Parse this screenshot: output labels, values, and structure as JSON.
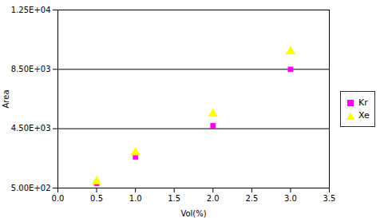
{
  "chart_data": {
    "type": "scatter",
    "xlabel": "Vol(%)",
    "ylabel": "Area",
    "x": [
      0.5,
      1.0,
      2.0,
      3.0
    ],
    "series": [
      {
        "name": "Kr",
        "color": "#FF00FF",
        "marker": "square",
        "values": [
          820,
          2600,
          4700,
          8500
        ]
      },
      {
        "name": "Xe",
        "color": "#FFFF00",
        "marker": "triangle",
        "values": [
          950,
          2900,
          5500,
          9700
        ]
      }
    ],
    "hlines": [
      4500,
      8500
    ],
    "xlim": [
      0.0,
      3.5
    ],
    "xticks": [
      {
        "value": 0.0,
        "label": "0.0"
      },
      0.5,
      {
        "value": 1.0,
        "label": "1.0"
      },
      1.5,
      {
        "value": 2.0,
        "label": "2.0"
      },
      2.5,
      {
        "value": 3.0,
        "label": "3.0"
      },
      3.5
    ],
    "ylim": [
      500,
      12500
    ],
    "yticks": [
      {
        "value": 500,
        "label": "5.00E+02"
      },
      {
        "value": 4500,
        "label": "4.50E+03"
      },
      {
        "value": 8500,
        "label": "8.50E+03"
      },
      {
        "value": 12500,
        "label": "1.25E+04"
      }
    ],
    "grid": false,
    "legend": "right"
  }
}
